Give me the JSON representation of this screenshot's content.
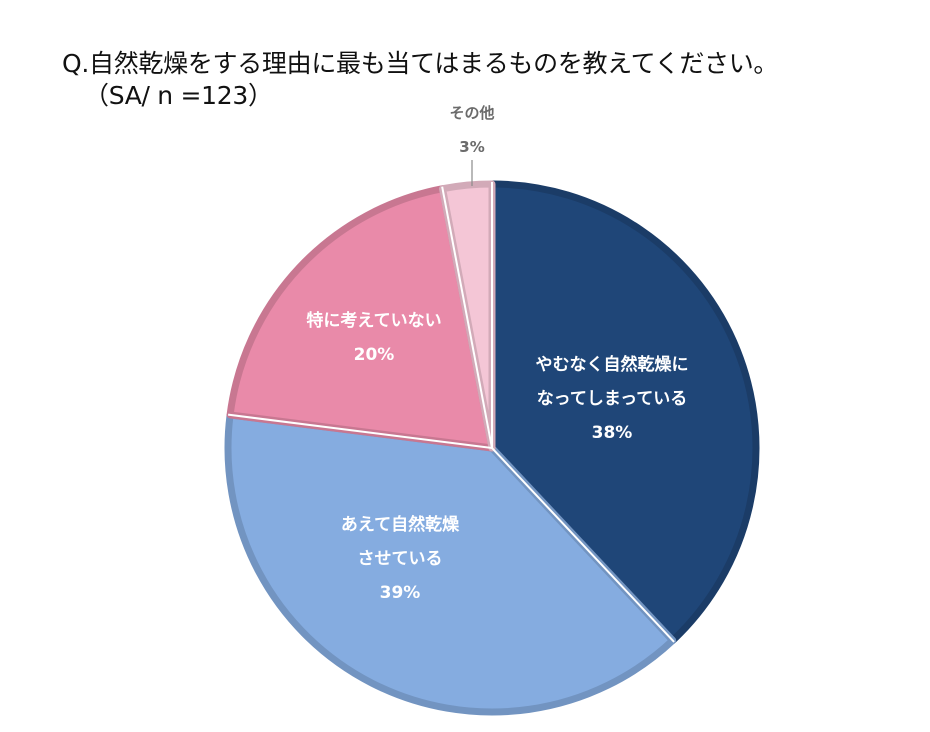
{
  "header": {
    "title": "Q.自然乾燥をする理由に最も当てはまるものを教えてください。",
    "subtitle": "（SA/ n =123）"
  },
  "chart_data": {
    "type": "pie",
    "title": "Q.自然乾燥をする理由に最も当てはまるものを教えてください。",
    "subtitle": "（SA/ n =123）",
    "slices": [
      {
        "label_lines": [
          "やむなく自然乾燥に",
          "なってしまっている"
        ],
        "value": 38,
        "value_label": "38%",
        "color": "#1f4678"
      },
      {
        "label_lines": [
          "あえて自然乾燥",
          "させている"
        ],
        "value": 39,
        "value_label": "39%",
        "color": "#85ace0"
      },
      {
        "label_lines": [
          "特に考えていない"
        ],
        "value": 20,
        "value_label": "20%",
        "color": "#e98aa9"
      },
      {
        "label_lines": [
          "その他"
        ],
        "value": 3,
        "value_label": "3%",
        "color": "#f4c6d6"
      }
    ],
    "start": "12 o'clock",
    "direction": "clockwise",
    "legend": "none"
  }
}
